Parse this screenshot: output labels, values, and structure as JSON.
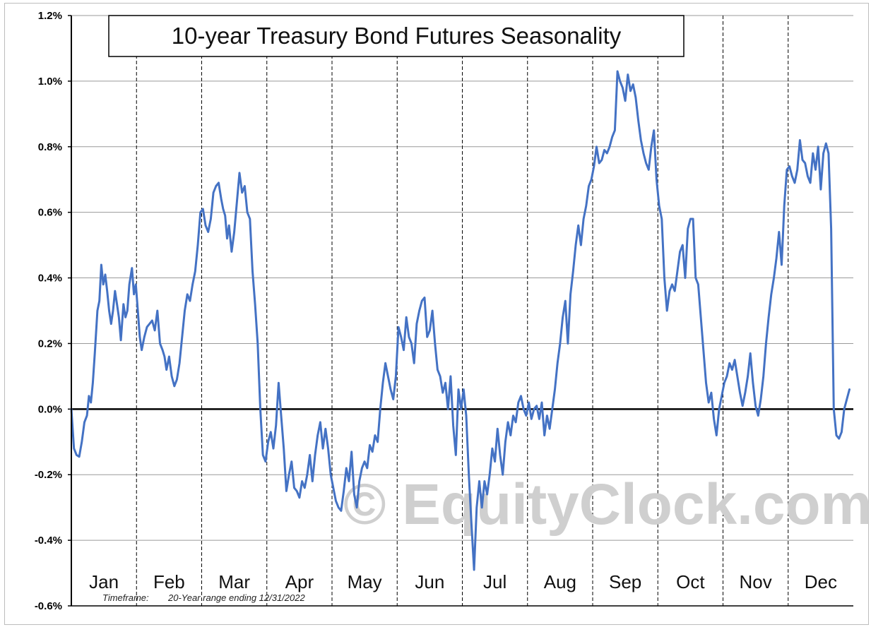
{
  "chart_data": {
    "type": "line",
    "title": "10-year Treasury Bond Futures Seasonality",
    "subtitle": "",
    "xlabel": "",
    "ylabel": "",
    "ylim": [
      -0.6,
      1.2
    ],
    "y_ticks": [
      1.2,
      1.0,
      0.8,
      0.6,
      0.4,
      0.2,
      0.0,
      -0.2,
      -0.4,
      -0.6
    ],
    "y_tick_labels": [
      "1.2%",
      "1.0%",
      "0.8%",
      "0.6%",
      "0.4%",
      "0.2%",
      "0.0%",
      "-0.2%",
      "-0.4%",
      "-0.6%"
    ],
    "x_tick_labels": [
      "Jan",
      "Feb",
      "Mar",
      "Apr",
      "May",
      "Jun",
      "Jul",
      "Aug",
      "Sep",
      "Oct",
      "Nov",
      "Dec"
    ],
    "xlim": [
      0,
      12
    ],
    "grid": "horizontal solid, vertical dashed month separators",
    "series": [
      {
        "color": "#4472c4",
        "x": [
          0.0,
          0.04,
          0.08,
          0.12,
          0.16,
          0.2,
          0.24,
          0.27,
          0.3,
          0.33,
          0.36,
          0.4,
          0.43,
          0.46,
          0.49,
          0.52,
          0.55,
          0.58,
          0.61,
          0.64,
          0.67,
          0.7,
          0.73,
          0.76,
          0.8,
          0.83,
          0.86,
          0.89,
          0.93,
          0.96,
          0.99,
          1.02,
          1.05,
          1.08,
          1.12,
          1.16,
          1.2,
          1.24,
          1.28,
          1.32,
          1.36,
          1.4,
          1.43,
          1.46,
          1.5,
          1.54,
          1.58,
          1.62,
          1.66,
          1.7,
          1.74,
          1.78,
          1.82,
          1.86,
          1.9,
          1.94,
          1.98,
          2.02,
          2.06,
          2.1,
          2.14,
          2.18,
          2.22,
          2.26,
          2.3,
          2.33,
          2.36,
          2.39,
          2.42,
          2.46,
          2.5,
          2.54,
          2.58,
          2.62,
          2.66,
          2.7,
          2.74,
          2.78,
          2.82,
          2.86,
          2.9,
          2.94,
          2.98,
          3.02,
          3.06,
          3.1,
          3.14,
          3.18,
          3.22,
          3.26,
          3.3,
          3.34,
          3.38,
          3.42,
          3.46,
          3.5,
          3.54,
          3.58,
          3.62,
          3.66,
          3.7,
          3.74,
          3.78,
          3.82,
          3.86,
          3.9,
          3.94,
          3.98,
          4.02,
          4.06,
          4.1,
          4.14,
          4.18,
          4.22,
          4.26,
          4.3,
          4.34,
          4.38,
          4.42,
          4.46,
          4.5,
          4.54,
          4.58,
          4.62,
          4.66,
          4.7,
          4.74,
          4.78,
          4.82,
          4.86,
          4.9,
          4.94,
          4.98,
          5.02,
          5.06,
          5.1,
          5.14,
          5.18,
          5.22,
          5.26,
          5.3,
          5.34,
          5.38,
          5.42,
          5.46,
          5.5,
          5.54,
          5.58,
          5.62,
          5.66,
          5.7,
          5.74,
          5.78,
          5.82,
          5.86,
          5.9,
          5.94,
          5.98,
          6.02,
          6.06,
          6.1,
          6.14,
          6.18,
          6.22,
          6.26,
          6.3,
          6.34,
          6.38,
          6.42,
          6.46,
          6.5,
          6.54,
          6.58,
          6.62,
          6.66,
          6.7,
          6.74,
          6.78,
          6.82,
          6.86,
          6.9,
          6.94,
          6.98,
          7.02,
          7.06,
          7.1,
          7.14,
          7.18,
          7.22,
          7.26,
          7.3,
          7.34,
          7.38,
          7.42,
          7.46,
          7.5,
          7.54,
          7.58,
          7.62,
          7.66,
          7.7,
          7.74,
          7.78,
          7.82,
          7.86,
          7.9,
          7.94,
          7.98,
          8.02,
          8.06,
          8.1,
          8.14,
          8.18,
          8.22,
          8.26,
          8.3,
          8.34,
          8.38,
          8.42,
          8.46,
          8.5,
          8.54,
          8.58,
          8.62,
          8.66,
          8.7,
          8.74,
          8.78,
          8.82,
          8.86,
          8.9,
          8.94,
          8.98,
          9.02,
          9.06,
          9.1,
          9.14,
          9.18,
          9.22,
          9.26,
          9.3,
          9.34,
          9.38,
          9.42,
          9.46,
          9.5,
          9.54,
          9.58,
          9.62,
          9.66,
          9.7,
          9.74,
          9.78,
          9.82,
          9.86,
          9.9,
          9.94,
          9.98,
          10.02,
          10.06,
          10.1,
          10.14,
          10.18,
          10.22,
          10.26,
          10.3,
          10.34,
          10.38,
          10.42,
          10.46,
          10.5,
          10.54,
          10.58,
          10.62,
          10.66,
          10.7,
          10.74,
          10.78,
          10.82,
          10.86,
          10.9,
          10.94,
          10.98,
          11.02,
          11.06,
          11.1,
          11.14,
          11.18,
          11.22,
          11.26,
          11.3,
          11.34,
          11.38,
          11.42,
          11.46,
          11.5,
          11.54,
          11.58,
          11.62,
          11.66,
          11.7,
          11.74,
          11.78,
          11.82,
          11.86,
          11.9,
          11.94
        ],
        "y": [
          0.0,
          -0.12,
          -0.14,
          -0.145,
          -0.1,
          -0.04,
          -0.02,
          0.04,
          0.02,
          0.08,
          0.17,
          0.3,
          0.33,
          0.44,
          0.38,
          0.41,
          0.36,
          0.3,
          0.26,
          0.3,
          0.36,
          0.32,
          0.28,
          0.21,
          0.32,
          0.28,
          0.3,
          0.38,
          0.43,
          0.35,
          0.38,
          0.3,
          0.22,
          0.18,
          0.22,
          0.25,
          0.26,
          0.27,
          0.24,
          0.3,
          0.2,
          0.18,
          0.16,
          0.12,
          0.16,
          0.1,
          0.07,
          0.09,
          0.14,
          0.22,
          0.3,
          0.35,
          0.33,
          0.38,
          0.42,
          0.5,
          0.6,
          0.61,
          0.56,
          0.54,
          0.58,
          0.66,
          0.68,
          0.69,
          0.64,
          0.61,
          0.59,
          0.52,
          0.56,
          0.48,
          0.54,
          0.63,
          0.72,
          0.66,
          0.68,
          0.6,
          0.58,
          0.42,
          0.32,
          0.2,
          0.0,
          -0.14,
          -0.16,
          -0.1,
          -0.07,
          -0.12,
          -0.05,
          0.08,
          -0.02,
          -0.12,
          -0.25,
          -0.2,
          -0.16,
          -0.24,
          -0.25,
          -0.27,
          -0.22,
          -0.24,
          -0.2,
          -0.14,
          -0.22,
          -0.14,
          -0.08,
          -0.04,
          -0.12,
          -0.06,
          -0.12,
          -0.2,
          -0.24,
          -0.28,
          -0.3,
          -0.31,
          -0.25,
          -0.18,
          -0.22,
          -0.13,
          -0.26,
          -0.3,
          -0.22,
          -0.18,
          -0.16,
          -0.18,
          -0.11,
          -0.13,
          -0.08,
          -0.1,
          0.0,
          0.08,
          0.14,
          0.1,
          0.06,
          0.03,
          0.1,
          0.25,
          0.22,
          0.18,
          0.28,
          0.22,
          0.2,
          0.14,
          0.26,
          0.3,
          0.33,
          0.34,
          0.22,
          0.24,
          0.3,
          0.2,
          0.12,
          0.1,
          0.05,
          0.08,
          0.0,
          0.1,
          -0.05,
          -0.14,
          0.06,
          0.0,
          0.06,
          -0.02,
          -0.2,
          -0.35,
          -0.49,
          -0.3,
          -0.22,
          -0.3,
          -0.22,
          -0.26,
          -0.2,
          -0.12,
          -0.16,
          -0.06,
          -0.14,
          -0.2,
          -0.1,
          -0.04,
          -0.08,
          -0.02,
          -0.04,
          0.02,
          0.04,
          0.0,
          -0.02,
          0.02,
          -0.03,
          0.0,
          0.01,
          -0.03,
          0.02,
          -0.08,
          -0.02,
          -0.06,
          0.0,
          0.06,
          0.14,
          0.2,
          0.28,
          0.33,
          0.2,
          0.35,
          0.42,
          0.5,
          0.56,
          0.5,
          0.58,
          0.62,
          0.68,
          0.7,
          0.74,
          0.8,
          0.75,
          0.76,
          0.79,
          0.78,
          0.8,
          0.83,
          0.85,
          1.03,
          1.0,
          0.98,
          0.94,
          1.02,
          0.97,
          0.99,
          0.95,
          0.88,
          0.82,
          0.78,
          0.75,
          0.73,
          0.8,
          0.85,
          0.7,
          0.62,
          0.58,
          0.4,
          0.3,
          0.36,
          0.38,
          0.36,
          0.42,
          0.48,
          0.5,
          0.4,
          0.55,
          0.58,
          0.58,
          0.4,
          0.38,
          0.28,
          0.18,
          0.08,
          0.02,
          0.05,
          -0.03,
          -0.08,
          0.0,
          0.04,
          0.08,
          0.1,
          0.14,
          0.12,
          0.15,
          0.1,
          0.05,
          0.01,
          0.05,
          0.1,
          0.17,
          0.08,
          0.01,
          -0.02,
          0.03,
          0.1,
          0.2,
          0.28,
          0.35,
          0.4,
          0.46,
          0.54,
          0.44,
          0.62,
          0.73,
          0.74,
          0.71,
          0.69,
          0.73,
          0.82,
          0.76,
          0.75,
          0.71,
          0.69,
          0.78,
          0.73,
          0.8,
          0.67,
          0.78,
          0.81,
          0.78,
          0.55,
          0.0,
          -0.08,
          -0.09,
          -0.07,
          0.0,
          0.03,
          0.06
        ]
      }
    ],
    "annotations": {
      "timeframe_label": "Timeframe:",
      "timeframe_value": "20-Year range ending 12/31/2022",
      "watermark": "© EquityClock.com"
    }
  }
}
